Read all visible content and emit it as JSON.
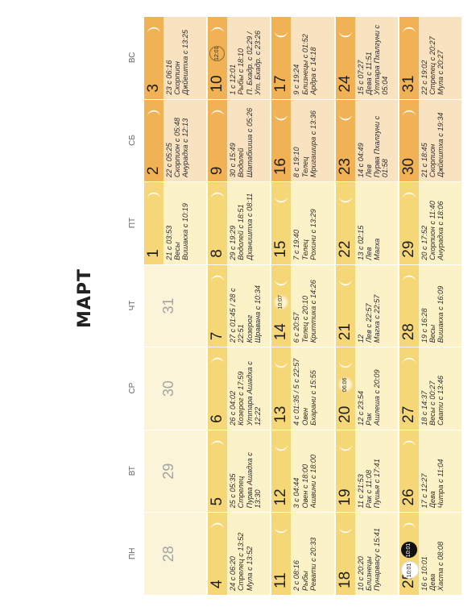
{
  "title": "МАРТ",
  "weekdays": [
    "ПН",
    "ВТ",
    "СР",
    "ЧТ",
    "ПТ",
    "СБ",
    "ВС"
  ],
  "colors": {
    "weekday_band": "#f6d777",
    "weekday_body": "#fcf2c8",
    "weekend_band": "#f1b255",
    "weekend_body": "#f9e2c0",
    "faded_body": "#fbf4d8",
    "moon": "#ffffff"
  },
  "weeks": [
    [
      {
        "day": "28",
        "faded": true
      },
      {
        "day": "29",
        "faded": true
      },
      {
        "day": "30",
        "faded": true
      },
      {
        "day": "31",
        "faded": true
      },
      {
        "day": "1",
        "info": "21 с 03:53\nВесы\nВишакха с 10:19",
        "moon": "crescent-right"
      },
      {
        "day": "2",
        "info": "22 с 05:25\nСкорпион с 05:48\nАнурадха с 12:13",
        "moon": "crescent-right",
        "weekend": true
      },
      {
        "day": "3",
        "info": "23 с 06:16\nСкорпион\nДжйештха с 13:25",
        "moon": "crescent-right",
        "weekend": true
      }
    ],
    [
      {
        "day": "4",
        "info": "24 с 06:20\nСтрелец с 13:52\nМула с 13:52",
        "moon": "crescent-right"
      },
      {
        "day": "5",
        "info": "25 с 05:35\nСтрелец\nПурва Ашадха с\n13:30",
        "moon": "crescent-right"
      },
      {
        "day": "6",
        "info": "26 с 04:02\nКозерог с 17:59\nУттара Ашадха с\n12:22",
        "moon": "crescent-right"
      },
      {
        "day": "7",
        "info": "27 с 01:45 / 28 с\n22:51\nКозерог\nШравана с 10:34",
        "moon": "crescent-right"
      },
      {
        "day": "8",
        "info": "29 с 19:29\nВодолей с 18:51\nДхаништха с 08:11",
        "moon": "crescent-right"
      },
      {
        "day": "9",
        "info": "30 с 15:49\nВодолей\nШатабхиша с 05:26",
        "moon": "crescent-right",
        "weekend": true
      },
      {
        "day": "10",
        "info": "1 с 12:01\nРыбы с 18:10\nП. Бхадр. с 02:29 /\nУт. Бхадр. с 23:26",
        "moon": "crescent-right",
        "weekend": true,
        "badge": "12:01",
        "badge_style": "outline"
      }
    ],
    [
      {
        "day": "11",
        "info": "2 с 08:16\nРыбы\nРевати с 20:33",
        "moon": "crescent-left"
      },
      {
        "day": "12",
        "info": "3 с 04:44\nОвен с 18:00\nАшвини с 18:00",
        "moon": "crescent-left"
      },
      {
        "day": "13",
        "info": "4 с 01:35 / 5 с 22:57\nОвен\nБхарани с 15:55",
        "moon": "crescent-left"
      },
      {
        "day": "14",
        "info": "6 с 20:57\nТелец с 20:10\nКриттика с 14:26",
        "moon": "crescent-left",
        "badge": "10:07",
        "badge_style": "sun"
      },
      {
        "day": "15",
        "info": "7 с 19:40\nТелец\nРохини с 13:29",
        "moon": "crescent-left"
      },
      {
        "day": "16",
        "info": "8 с 19:10\nТелец\nМригашира с 13:36",
        "moon": "crescent-left",
        "weekend": true
      },
      {
        "day": "17",
        "info": "9 с 19:24\nБлизнецы с 01:52\nАрдра с 14:18",
        "moon": "crescent-left",
        "weekend": true
      }
    ],
    [
      {
        "day": "18",
        "info": "10 с 20:20\nБлизнецы\nПунарвасу с 15:41",
        "moon": "crescent-left"
      },
      {
        "day": "19",
        "info": "11 с 21:53\nРак с 11:08\nПушья с 17:41",
        "moon": "crescent-left"
      },
      {
        "day": "20",
        "info": "12 с 23:54\nРак\nАшлеша с 20:09",
        "moon": "crescent-left",
        "badge": "06:06",
        "badge_style": "sun"
      },
      {
        "day": "21",
        "info": "12\nЛев с 22:57\nМагха с 22:57",
        "moon": "crescent-left"
      },
      {
        "day": "22",
        "info": "13 с 02:15\nЛев\nМагха",
        "moon": "crescent-left"
      },
      {
        "day": "23",
        "info": "14 с 04:49\nЛев\nПурва Пхалгуни с\n01:58",
        "moon": "crescent-left",
        "weekend": true
      },
      {
        "day": "24",
        "info": "15 с 07:27\nДева с 11:51\nУттара Пхалгуни с\n05:04",
        "moon": "crescent-left",
        "weekend": true
      }
    ],
    [
      {
        "day": "25",
        "info": "16 с 10:01\nДева\nХаста с 08:08",
        "moon": "crescent-right",
        "badge": "10:01",
        "badge_style": "black",
        "badge2": "10:01"
      },
      {
        "day": "26",
        "info": "17 с 12:27\nДева\nЧитра с 11:04",
        "moon": "crescent-right"
      },
      {
        "day": "27",
        "info": "18 с 14:37\nВесы с 00:27\nСвати с 13:46",
        "moon": "crescent-right"
      },
      {
        "day": "28",
        "info": "19 с 16:28\nВесы\nВишакха с 16:09",
        "moon": "crescent-right"
      },
      {
        "day": "29",
        "info": "20 с 17:52\nСкорпион с 11:40\nАнурадха с 18:06",
        "moon": "crescent-right"
      },
      {
        "day": "30",
        "info": "21 с 18:45\nСкорпион\nДжйештха с 19:34",
        "moon": "crescent-right",
        "weekend": true
      },
      {
        "day": "31",
        "info": "22 с 19:02\nСтрелец с 20:27\nМула с 20:27",
        "moon": "crescent-right",
        "weekend": true
      }
    ]
  ]
}
